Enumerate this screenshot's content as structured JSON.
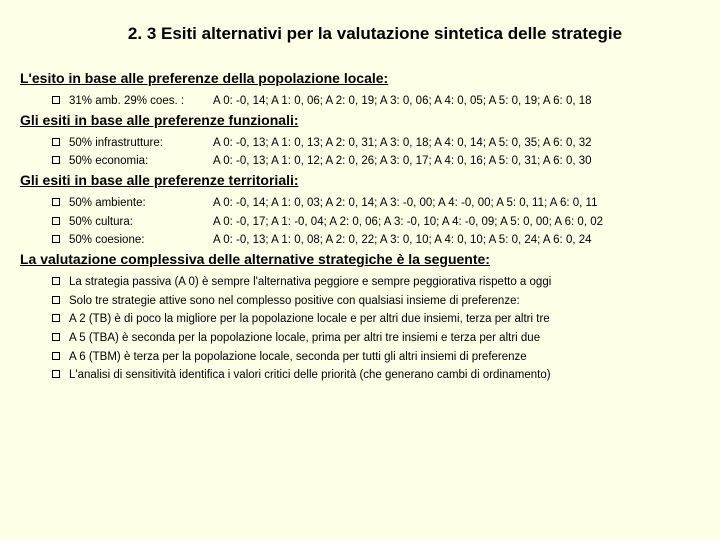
{
  "title": "2. 3 Esiti alternativi per la valutazione sintetica delle strategie",
  "sections": [
    {
      "header": "L'esito in base alle preferenze della popolazione locale:",
      "rows": [
        {
          "label": "31% amb. 29% coes. :",
          "values": "A 0: -0, 14; A 1: 0, 06; A 2: 0, 19; A 3: 0, 06; A 4: 0, 05; A 5: 0, 19; A 6: 0, 18"
        }
      ]
    },
    {
      "header": "Gli esiti in base alle preferenze funzionali:",
      "rows": [
        {
          "label": "50% infrastrutture:",
          "values": "A 0: -0, 13; A 1: 0, 13; A 2: 0, 31; A 3: 0, 18; A 4: 0, 14; A 5: 0, 35; A 6: 0, 32"
        },
        {
          "label": "50% economia:",
          "values": "A 0: -0, 13; A 1: 0, 12; A 2: 0, 26; A 3: 0, 17; A 4: 0, 16; A 5: 0, 31; A 6: 0, 30"
        }
      ]
    },
    {
      "header": "Gli esiti in base alle preferenze territoriali:",
      "rows": [
        {
          "label": "50% ambiente:",
          "values": "A 0: -0, 14; A 1: 0, 03; A 2: 0, 14; A 3: -0, 00; A 4: -0, 00; A 5: 0, 11; A 6: 0, 11"
        },
        {
          "label": "50% cultura:",
          "values": "A 0: -0, 17; A 1: -0, 04; A 2: 0, 06; A 3: -0, 10; A 4: -0, 09; A 5: 0, 00; A 6: 0, 02"
        },
        {
          "label": "50% coesione:",
          "values": "A 0: -0, 13; A 1: 0, 08; A 2: 0, 22; A 3: 0, 10; A 4: 0, 10; A 5: 0, 24; A 6: 0, 24"
        }
      ]
    }
  ],
  "conclusion": {
    "header": "La valutazione complessiva delle alternative strategiche è la seguente:",
    "items": [
      "La strategia passiva (A 0) è sempre l'alternativa peggiore e sempre peggiorativa rispetto a oggi",
      "Solo tre strategie attive sono nel complesso positive con qualsiasi insieme di preferenze:",
      "A 2 (TB) è di poco la migliore per la popolazione locale e per altri due insiemi, terza per altri tre",
      "A 5 (TBA) è seconda per la popolazione locale, prima per altri tre insiemi e terza per altri due",
      "A 6 (TBM) è terza per la popolazione locale, seconda per tutti gli altri insiemi di preferenze",
      "L'analisi di sensitività identifica i valori critici delle priorità (che generano cambi di ordinamento)"
    ]
  },
  "colors": {
    "background": "#ffffe8",
    "text": "#000000"
  }
}
